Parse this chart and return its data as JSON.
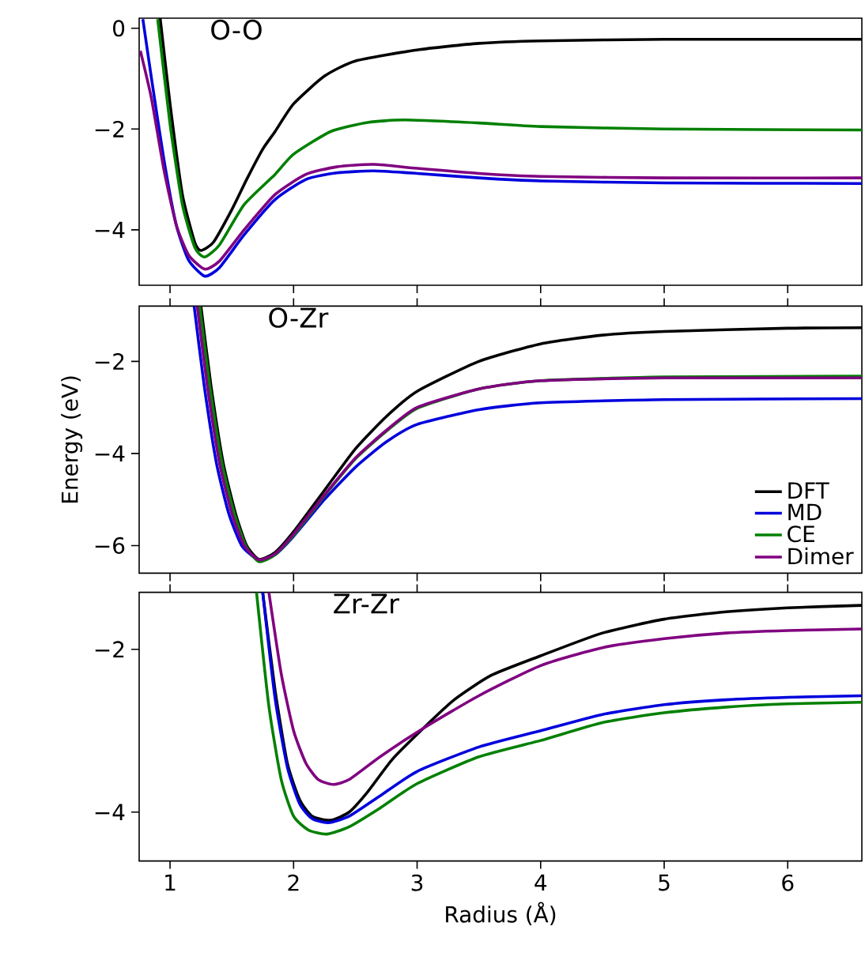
{
  "chart_data": [
    {
      "type": "line",
      "title": "O-O",
      "xlim": [
        0.75,
        6.6
      ],
      "ylim": [
        -5.1,
        0.2
      ],
      "xticks": [
        1,
        2,
        3,
        4,
        5,
        6
      ],
      "yticks": [
        0,
        {
          "value": -2,
          "label": "−2"
        },
        {
          "value": -4,
          "label": "−4"
        }
      ],
      "tick_labels": "y",
      "series": [
        {
          "color": "#000000",
          "x": [
            0.92,
            1.0,
            1.1,
            1.2,
            1.25,
            1.35,
            1.5,
            1.62,
            1.75,
            1.85,
            2.0,
            2.25,
            2.5,
            3.0,
            3.5,
            4.0,
            5.0,
            6.6
          ],
          "values": [
            0.2,
            -1.5,
            -3.3,
            -4.25,
            -4.41,
            -4.25,
            -3.6,
            -3.0,
            -2.4,
            -2.05,
            -1.5,
            -0.95,
            -0.65,
            -0.43,
            -0.3,
            -0.25,
            -0.22,
            -0.22
          ]
        },
        {
          "color": "#0000dd",
          "x": [
            0.78,
            0.85,
            0.95,
            1.05,
            1.15,
            1.28,
            1.4,
            1.6,
            1.85,
            2.1,
            2.35,
            2.65,
            3.0,
            3.5,
            4.0,
            5.0,
            6.6
          ],
          "values": [
            0.18,
            -1.0,
            -2.6,
            -3.9,
            -4.6,
            -4.92,
            -4.75,
            -4.1,
            -3.4,
            -3.0,
            -2.87,
            -2.83,
            -2.88,
            -2.97,
            -3.03,
            -3.07,
            -3.08
          ]
        },
        {
          "color": "#008000",
          "x": [
            0.9,
            1.0,
            1.1,
            1.2,
            1.28,
            1.4,
            1.6,
            1.85,
            2.0,
            2.3,
            2.6,
            2.9,
            3.5,
            4.0,
            5.0,
            6.6
          ],
          "values": [
            0.18,
            -1.9,
            -3.5,
            -4.35,
            -4.54,
            -4.3,
            -3.5,
            -2.9,
            -2.5,
            -2.05,
            -1.87,
            -1.82,
            -1.88,
            -1.95,
            -2.0,
            -2.02
          ]
        },
        {
          "color": "#800080",
          "x": [
            0.76,
            0.85,
            0.95,
            1.05,
            1.15,
            1.28,
            1.4,
            1.6,
            1.85,
            2.1,
            2.35,
            2.65,
            3.0,
            3.5,
            4.0,
            5.0,
            6.6
          ],
          "values": [
            -0.45,
            -1.4,
            -2.8,
            -3.9,
            -4.5,
            -4.78,
            -4.62,
            -4.0,
            -3.3,
            -2.9,
            -2.75,
            -2.7,
            -2.78,
            -2.88,
            -2.94,
            -2.97,
            -2.97
          ]
        }
      ]
    },
    {
      "type": "line",
      "title": "O-Zr",
      "ylabel": "Energy (eV)",
      "legend": "bottom right",
      "xlim": [
        0.75,
        6.6
      ],
      "ylim": [
        -6.6,
        -0.8
      ],
      "xticks": [
        1,
        2,
        3,
        4,
        5,
        6
      ],
      "yticks": [
        {
          "value": -2,
          "label": "−2"
        },
        {
          "value": -4,
          "label": "−4"
        },
        {
          "value": -6,
          "label": "−6"
        }
      ],
      "tick_labels": "y",
      "series": [
        {
          "name": "DFT",
          "color": "#000000",
          "x": [
            1.25,
            1.33,
            1.43,
            1.53,
            1.62,
            1.72,
            1.85,
            2.0,
            2.25,
            2.5,
            2.75,
            3.0,
            3.5,
            4.0,
            4.5,
            5.0,
            6.0,
            6.6
          ],
          "values": [
            -0.8,
            -2.5,
            -4.2,
            -5.3,
            -6.0,
            -6.3,
            -6.15,
            -5.7,
            -4.8,
            -3.9,
            -3.2,
            -2.65,
            -2.0,
            -1.62,
            -1.43,
            -1.35,
            -1.28,
            -1.27
          ]
        },
        {
          "name": "MD",
          "color": "#0000dd",
          "x": [
            1.195,
            1.275,
            1.375,
            1.475,
            1.58,
            1.72,
            1.85,
            2.0,
            2.25,
            2.5,
            2.75,
            3.0,
            3.5,
            4.0,
            5.0,
            6.6
          ],
          "values": [
            -0.8,
            -2.5,
            -4.2,
            -5.3,
            -6.0,
            -6.32,
            -6.2,
            -5.8,
            -5.0,
            -4.3,
            -3.75,
            -3.37,
            -3.05,
            -2.9,
            -2.83,
            -2.81
          ]
        },
        {
          "name": "CE",
          "color": "#008000",
          "x": [
            1.24,
            1.32,
            1.42,
            1.52,
            1.615,
            1.72,
            1.85,
            2.0,
            2.25,
            2.5,
            2.75,
            3.0,
            3.5,
            4.0,
            5.0,
            6.6
          ],
          "values": [
            -0.8,
            -2.5,
            -4.2,
            -5.3,
            -6.02,
            -6.35,
            -6.2,
            -5.78,
            -4.92,
            -4.12,
            -3.52,
            -3.02,
            -2.6,
            -2.42,
            -2.34,
            -2.32
          ]
        },
        {
          "name": "Dimer",
          "color": "#800080",
          "x": [
            1.22,
            1.3,
            1.4,
            1.5,
            1.6,
            1.72,
            1.85,
            2.0,
            2.25,
            2.5,
            2.75,
            3.0,
            3.5,
            4.0,
            5.0,
            6.6
          ],
          "values": [
            -0.8,
            -2.5,
            -4.2,
            -5.3,
            -6.0,
            -6.31,
            -6.18,
            -5.75,
            -4.9,
            -4.1,
            -3.5,
            -3.0,
            -2.6,
            -2.42,
            -2.36,
            -2.36
          ]
        }
      ]
    },
    {
      "type": "line",
      "title": "Zr-Zr",
      "xlabel": "Radius (Å)",
      "xlim": [
        0.75,
        6.6
      ],
      "ylim": [
        -4.6,
        -1.3
      ],
      "xticks": [
        1,
        2,
        3,
        4,
        5,
        6
      ],
      "yticks": [
        {
          "value": -2,
          "label": "−2"
        },
        {
          "value": -4,
          "label": "−4"
        }
      ],
      "series": [
        {
          "color": "#000000",
          "x": [
            1.75,
            1.85,
            1.95,
            2.05,
            2.15,
            2.3,
            2.45,
            2.6,
            2.8,
            3.05,
            3.3,
            3.6,
            4.0,
            4.5,
            5.0,
            5.5,
            6.0,
            6.6
          ],
          "values": [
            -1.3,
            -2.5,
            -3.4,
            -3.85,
            -4.05,
            -4.1,
            -4.0,
            -3.75,
            -3.35,
            -2.97,
            -2.62,
            -2.32,
            -2.08,
            -1.8,
            -1.63,
            -1.54,
            -1.49,
            -1.46
          ]
        },
        {
          "color": "#0000dd",
          "x": [
            1.75,
            1.85,
            1.95,
            2.05,
            2.15,
            2.28,
            2.45,
            2.7,
            3.0,
            3.5,
            4.0,
            4.5,
            5.0,
            5.5,
            6.0,
            6.6
          ],
          "values": [
            -1.3,
            -2.6,
            -3.45,
            -3.9,
            -4.08,
            -4.13,
            -4.05,
            -3.8,
            -3.5,
            -3.2,
            -3.0,
            -2.8,
            -2.68,
            -2.62,
            -2.59,
            -2.57
          ]
        },
        {
          "color": "#008000",
          "x": [
            1.7,
            1.8,
            1.9,
            2.0,
            2.12,
            2.27,
            2.45,
            2.7,
            3.0,
            3.5,
            4.0,
            4.5,
            5.0,
            5.5,
            6.0,
            6.6
          ],
          "values": [
            -1.3,
            -2.7,
            -3.6,
            -4.05,
            -4.22,
            -4.27,
            -4.18,
            -3.95,
            -3.65,
            -3.32,
            -3.12,
            -2.9,
            -2.78,
            -2.71,
            -2.67,
            -2.65
          ]
        },
        {
          "color": "#800080",
          "x": [
            1.8,
            1.9,
            2.0,
            2.1,
            2.2,
            2.32,
            2.45,
            2.7,
            3.05,
            3.5,
            4.0,
            4.5,
            5.0,
            5.5,
            6.0,
            6.6
          ],
          "values": [
            -1.3,
            -2.3,
            -3.0,
            -3.4,
            -3.6,
            -3.66,
            -3.6,
            -3.32,
            -2.97,
            -2.57,
            -2.2,
            -1.98,
            -1.87,
            -1.8,
            -1.77,
            -1.75
          ]
        }
      ]
    }
  ]
}
